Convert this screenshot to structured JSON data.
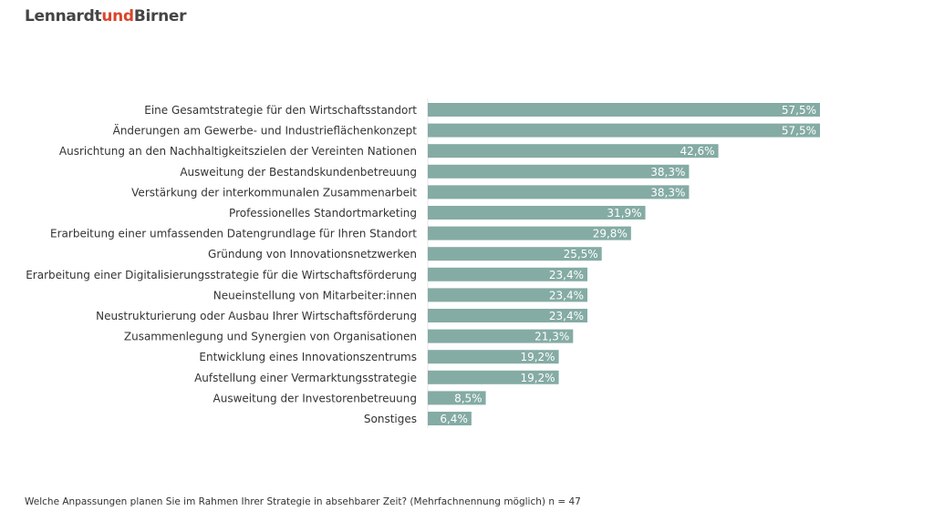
{
  "logo": {
    "part1": "Lennardt",
    "part2": "und",
    "part3": "Birner"
  },
  "footer": "Welche Anpassungen planen Sie im Rahmen Ihrer Strategie in absehbarer Zeit? (Mehrfachnennung möglich) n = 47",
  "chart_data": {
    "type": "bar",
    "orientation": "horizontal",
    "bar_color": "#84aba4",
    "categories": [
      "Eine Gesamtstrategie für den Wirtschaftsstandort",
      "Änderungen am Gewerbe- und Industrieflächenkonzept",
      "Ausrichtung an den Nachhaltigkeitszielen der Vereinten Nationen",
      "Ausweitung der Bestandskundenbetreuung",
      "Verstärkung der interkommunalen Zusammenarbeit",
      "Professionelles Standortmarketing",
      "Erarbeitung einer umfassenden Datengrundlage für Ihren Standort",
      "Gründung von Innovationsnetzwerken",
      "Erarbeitung einer Digitalisierungsstrategie für die Wirtschaftsförderung",
      "Neueinstellung von Mitarbeiter:innen",
      "Neustrukturierung oder Ausbau Ihrer Wirtschaftsförderung",
      "Zusammenlegung und Synergien von Organisationen",
      "Entwicklung eines Innovationszentrums",
      "Aufstellung einer Vermarktungsstrategie",
      "Ausweitung der Investorenbetreuung",
      "Sonstiges"
    ],
    "values": [
      57.5,
      57.5,
      42.6,
      38.3,
      38.3,
      31.9,
      29.8,
      25.5,
      23.4,
      23.4,
      23.4,
      21.3,
      19.2,
      19.2,
      8.5,
      6.4
    ],
    "labels": [
      "57,5%",
      "57,5%",
      "42,6%",
      "38,3%",
      "38,3%",
      "31,9%",
      "29,8%",
      "25,5%",
      "23,4%",
      "23,4%",
      "23,4%",
      "21,3%",
      "19,2%",
      "19,2%",
      "8,5%",
      "6,4%"
    ],
    "grid": false
  }
}
